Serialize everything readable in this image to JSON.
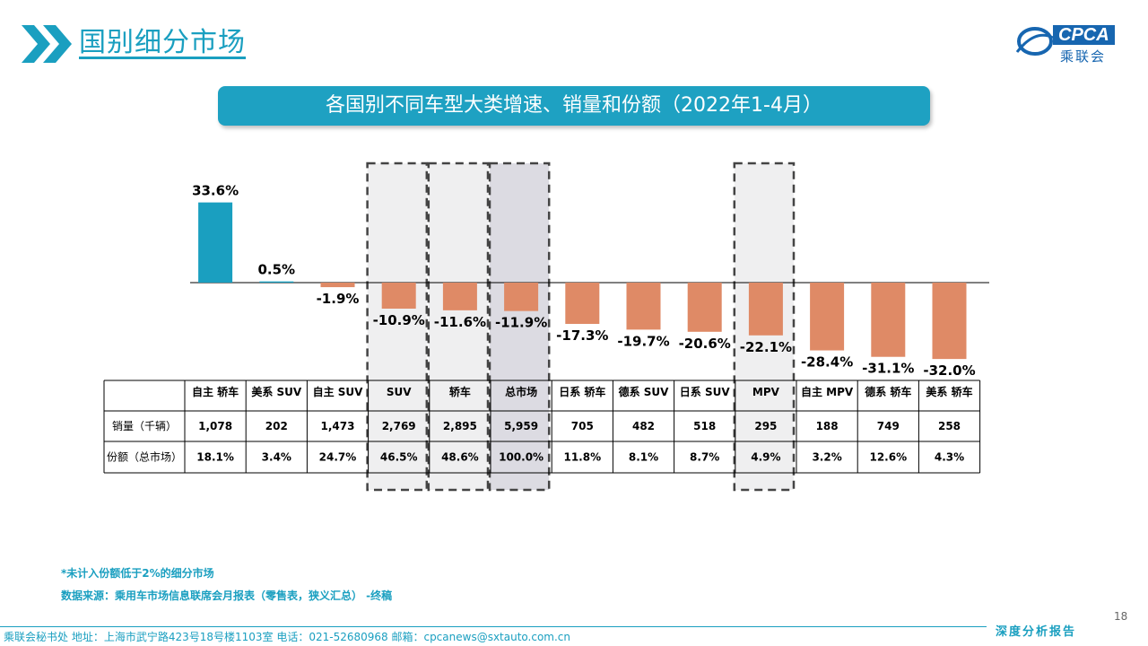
{
  "header": {
    "title": "国别细分市场",
    "chevron_icon": "double-chevron-right-icon",
    "accent": "#1a9fc0"
  },
  "logo": {
    "icon": "cpca-globe-icon",
    "cpca": "CPCA",
    "cn": "乘联会",
    "en": "CPCA"
  },
  "banner": {
    "text": "各国别不同车型大类增速、销量和份额（2022年1-4月）",
    "color": "#1ea1c2"
  },
  "chart_data": {
    "type": "bar",
    "categories": [
      "自主 轿车",
      "美系 SUV",
      "自主 SUV",
      "SUV",
      "轿车",
      "总市场",
      "日系 轿车",
      "德系 SUV",
      "日系 SUV",
      "MPV",
      "自主 MPV",
      "德系 轿车",
      "美系 轿车"
    ],
    "values": [
      33.6,
      0.5,
      -1.9,
      -10.9,
      -11.6,
      -11.9,
      -17.3,
      -19.7,
      -20.6,
      -22.1,
      -28.4,
      -31.1,
      -32.0
    ],
    "value_labels": [
      "33.6%",
      "0.5%",
      "-1.9%",
      "-10.9%",
      "-11.6%",
      "-11.9%",
      "-17.3%",
      "-19.7%",
      "-20.6%",
      "-22.1%",
      "-28.4%",
      "-31.1%",
      "-32.0%"
    ],
    "positive_color": "#1a9fc0",
    "negative_color": "#df8a66",
    "highlighted": [
      "SUV",
      "轿车",
      "总市场",
      "MPV"
    ],
    "grid": false,
    "table": {
      "rows": [
        {
          "label": "销量（千辆）",
          "values": [
            "1,078",
            "202",
            "1,473",
            "2,769",
            "2,895",
            "5,959",
            "705",
            "482",
            "518",
            "295",
            "188",
            "749",
            "258"
          ]
        },
        {
          "label": "份额（总市场）",
          "values": [
            "18.1%",
            "3.4%",
            "24.7%",
            "46.5%",
            "48.6%",
            "100.0%",
            "11.8%",
            "8.1%",
            "8.7%",
            "4.9%",
            "3.2%",
            "12.6%",
            "4.3%"
          ]
        }
      ]
    }
  },
  "notes": {
    "note1": "*未计入份额低于2%的细分市场",
    "note2": "数据来源：乘用车市场信息联席会月报表（零售表，狭义汇总） -终稿"
  },
  "page_number": "18",
  "footer": {
    "contact": "乘联会秘书处 地址：上海市武宁路423号18号楼1103室 电话：021-52680968 邮箱：cpcanews@sxtauto.com.cn",
    "tag": "深度分析报告"
  }
}
